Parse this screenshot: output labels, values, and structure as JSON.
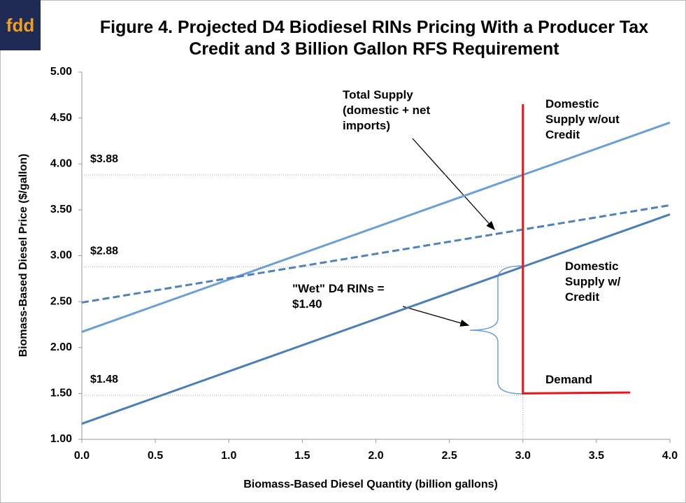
{
  "chart_data": {
    "type": "line",
    "logo": "fdd",
    "title": "Figure 4. Projected D4 Biodiesel RINs Pricing With a Producer Tax Credit and 3 Billion Gallon RFS Requirement",
    "xlabel": "Biomass-Based Diesel Quantity (billion gallons)",
    "ylabel": "Biomass-Based Diesel Price ($/gallon)",
    "xlim": [
      0,
      4
    ],
    "ylim": [
      1,
      5
    ],
    "xticks": [
      {
        "value": 0,
        "label": "0.0"
      },
      {
        "value": 0.5,
        "label": "0.5"
      },
      {
        "value": 1,
        "label": "1.0"
      },
      {
        "value": 1.5,
        "label": "1.5"
      },
      {
        "value": 2,
        "label": "2.0"
      },
      {
        "value": 2.5,
        "label": "2.5"
      },
      {
        "value": 3,
        "label": "3.0"
      },
      {
        "value": 3.5,
        "label": "3.5"
      },
      {
        "value": 4,
        "label": "4.0"
      }
    ],
    "yticks": [
      {
        "value": 1,
        "label": "1.00"
      },
      {
        "value": 1.5,
        "label": "1.50"
      },
      {
        "value": 2,
        "label": "2.00"
      },
      {
        "value": 2.5,
        "label": "2.50"
      },
      {
        "value": 3,
        "label": "3.00"
      },
      {
        "value": 3.5,
        "label": "3.50"
      },
      {
        "value": 4,
        "label": "4.00"
      },
      {
        "value": 4.5,
        "label": "4.50"
      },
      {
        "value": 5,
        "label": "5.00"
      }
    ],
    "grid": false,
    "series": [
      {
        "name": "Domestic Supply w/out Credit",
        "color": "#6a9fd8",
        "dashed": false,
        "x": [
          0,
          4
        ],
        "values": [
          2.17,
          4.45
        ]
      },
      {
        "name": "Total Supply (domestic + net imports)",
        "color": "#4f81bd",
        "dashed": true,
        "x": [
          0,
          4
        ],
        "values": [
          2.49,
          3.55
        ]
      },
      {
        "name": "Domestic Supply w/ Credit",
        "color": "#4a7ebb",
        "dashed": false,
        "x": [
          0,
          4
        ],
        "values": [
          1.17,
          3.45
        ]
      },
      {
        "name": "Demand",
        "color": "#e8141b",
        "dashed": false,
        "x": [
          3,
          3,
          3.73
        ],
        "values": [
          4.65,
          1.5,
          1.51
        ]
      }
    ],
    "reference_lines": [
      {
        "value": 3.88,
        "label": "$3.88"
      },
      {
        "value": 2.88,
        "label": "$2.88"
      },
      {
        "value": 1.48,
        "label": "$1.48"
      }
    ],
    "vline": 3,
    "annotation": "\"Wet\" D4 RINs = $1.40"
  }
}
